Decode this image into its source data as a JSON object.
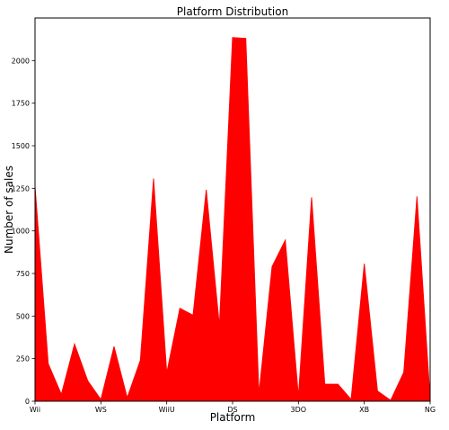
{
  "chart_data": {
    "type": "area",
    "title": "Platform Distribution",
    "xlabel": "Platform",
    "ylabel": "Number of sales",
    "x_tick_labels": [
      "Wii",
      "WS",
      "WiiU",
      "DS",
      "3DO",
      "XB",
      "NG"
    ],
    "x_tick_indices": [
      0,
      5,
      10,
      15,
      20,
      25,
      30
    ],
    "y_ticks": [
      0,
      250,
      500,
      750,
      1000,
      1250,
      1500,
      1750,
      2000
    ],
    "ylim": [
      0,
      2250
    ],
    "color": "#ff0000",
    "series": [
      {
        "values": [
          1260,
          220,
          40,
          335,
          120,
          10,
          320,
          20,
          240,
          1305,
          165,
          545,
          505,
          1240,
          440,
          2135,
          2130,
          40,
          790,
          945,
          25,
          1195,
          100,
          100,
          10,
          805,
          60,
          5,
          170,
          1200,
          10
        ]
      }
    ],
    "grid": false,
    "legend": "none"
  }
}
